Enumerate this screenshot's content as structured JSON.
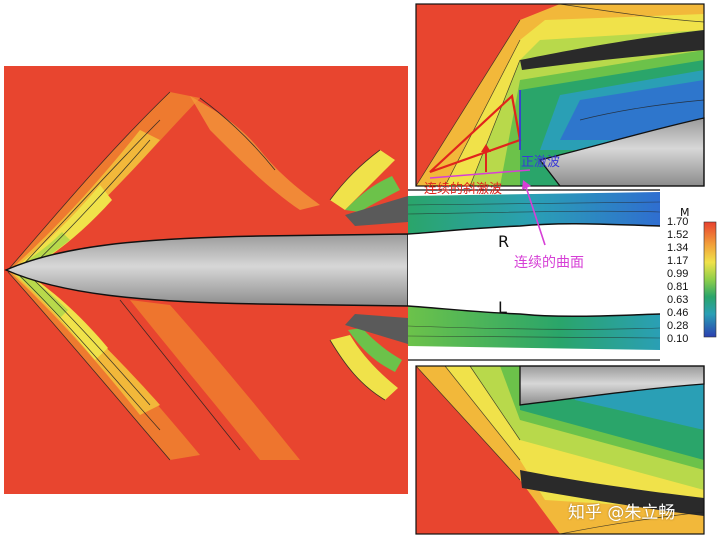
{
  "annotations": {
    "normal_shock": "正激波",
    "oblique_shock": "连续的斜激波",
    "curved_surface": "连续的曲面",
    "label_R": "R",
    "label_L": "L"
  },
  "legend": {
    "title": "M",
    "ticks": [
      "1.70",
      "1.52",
      "1.34",
      "1.17",
      "0.99",
      "0.81",
      "0.63",
      "0.46",
      "0.28",
      "0.10"
    ],
    "colors": [
      "#e8412f",
      "#ee7a2f",
      "#f2b83a",
      "#f0e24a",
      "#b8d94b",
      "#6cc24a",
      "#2aa56a",
      "#2a9fb5",
      "#2f6ed0",
      "#2b3fb0"
    ]
  },
  "watermark": "知乎 @朱立畅"
}
